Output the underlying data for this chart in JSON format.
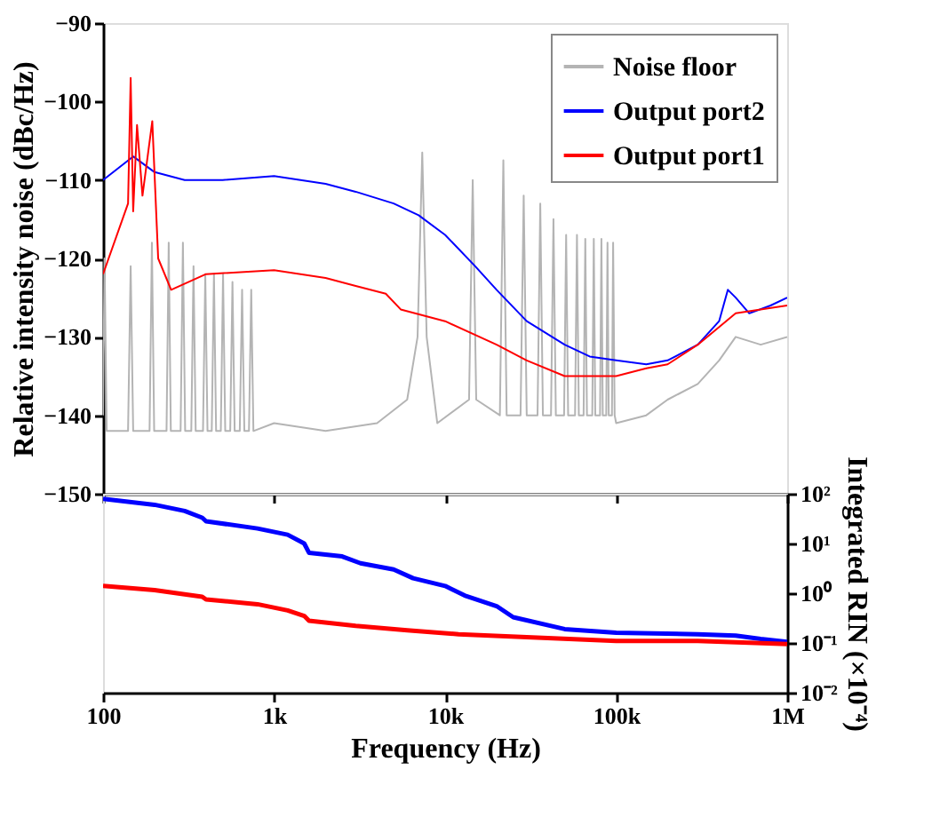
{
  "chart_data": [
    {
      "type": "line",
      "ylabel": "Relative intensity noise (dBc/Hz)",
      "xlim": [
        100,
        1000000
      ],
      "xticks": [
        {
          "value": 100,
          "label": null
        },
        {
          "value": 1000,
          "label": null
        },
        {
          "value": 10000,
          "label": null
        },
        {
          "value": 100000,
          "label": null
        },
        {
          "value": 1000000,
          "label": null
        }
      ],
      "ylim": [
        -150,
        -90
      ],
      "yticks": [
        -150,
        -140,
        -130,
        -120,
        -110,
        -100,
        -90
      ],
      "log": "x",
      "tick_labels": "y",
      "legend": "top right",
      "grid": false,
      "series": [
        {
          "name": "Noise floor",
          "color": "#b4b4b4",
          "x": [
            100,
            102,
            105,
            140,
            145,
            150,
            187,
            193,
            199,
            235,
            242,
            249,
            284,
            293,
            302,
            328,
            338,
            348,
            384,
            396,
            408,
            432,
            445,
            458,
            488,
            503,
            518,
            554,
            571,
            588,
            630,
            650,
            670,
            713,
            735,
            757,
            1000,
            2000,
            4000,
            6000,
            6900,
            7350,
            7800,
            9000,
            13800,
            14500,
            15200,
            20900,
            21900,
            22900,
            27600,
            28800,
            30000,
            34700,
            36000,
            37300,
            41600,
            43000,
            44400,
            49600,
            51000,
            52400,
            57500,
            59000,
            60500,
            64500,
            66000,
            67500,
            72500,
            74000,
            75500,
            80500,
            82000,
            83500,
            87500,
            89000,
            90500,
            94500,
            96000,
            98000,
            100000,
            150000,
            200000,
            300000,
            400000,
            500000,
            700000,
            1000000
          ],
          "values": [
            -140,
            -120,
            -142,
            -142,
            -121,
            -142,
            -142,
            -118,
            -142,
            -142,
            -118,
            -142,
            -142,
            -118,
            -142,
            -142,
            -121,
            -142,
            -142,
            -122,
            -142,
            -142,
            -122,
            -142,
            -142,
            -122,
            -142,
            -142,
            -123,
            -142,
            -142,
            -124,
            -142,
            -142,
            -124,
            -142,
            -141,
            -142,
            -141,
            -138,
            -130,
            -106.5,
            -130,
            -141,
            -138,
            -110,
            -138,
            -140,
            -107.5,
            -140,
            -140,
            -112,
            -140,
            -140,
            -113,
            -140,
            -140,
            -115,
            -140,
            -140,
            -117,
            -140,
            -140,
            -117,
            -140,
            -140,
            -117.5,
            -140,
            -140,
            -117.5,
            -140,
            -140,
            -117.5,
            -140,
            -140,
            -118,
            -140,
            -140,
            -118,
            -140,
            -141,
            -140,
            -138,
            -136,
            -133,
            -130,
            -131,
            -130
          ]
        },
        {
          "name": "Output port2",
          "color": "#0000ff",
          "x": [
            100,
            150,
            200,
            300,
            500,
            1000,
            2000,
            3000,
            5000,
            7000,
            10000,
            15000,
            20000,
            30000,
            50000,
            70000,
            100000,
            150000,
            200000,
            300000,
            400000,
            450000,
            500000,
            600000,
            800000,
            1000000
          ],
          "values": [
            -110,
            -107,
            -109,
            -110,
            -110,
            -109.5,
            -110.5,
            -111.5,
            -113,
            -114.5,
            -117,
            -121,
            -124,
            -128,
            -131,
            -132.5,
            -133,
            -133.5,
            -133,
            -131,
            -128,
            -124,
            -125,
            -127,
            -126,
            -125
          ]
        },
        {
          "name": "Output port1",
          "color": "#ff0000",
          "x": [
            100,
            140,
            145,
            150,
            158,
            170,
            194,
            210,
            250,
            400,
            1000,
            2000,
            3000,
            4500,
            5500,
            10000,
            20000,
            30000,
            50000,
            70000,
            100000,
            150000,
            200000,
            300000,
            500000,
            1000000
          ],
          "values": [
            -122,
            -113,
            -97,
            -114,
            -103,
            -112,
            -102.5,
            -120,
            -124,
            -122,
            -121.5,
            -122.5,
            -123.5,
            -124.5,
            -126.5,
            -128,
            -131,
            -133,
            -135,
            -135,
            -135,
            -134,
            -133.5,
            -131,
            -127,
            -126
          ]
        }
      ]
    },
    {
      "type": "line",
      "xlabel": "Frequency (Hz)",
      "ylabel": "Integrated RIN (×10⁻⁴)",
      "xlim": [
        100,
        1000000
      ],
      "xticks": [
        {
          "value": 100,
          "label": "100"
        },
        {
          "value": 1000,
          "label": "1k"
        },
        {
          "value": 10000,
          "label": "10k"
        },
        {
          "value": 100000,
          "label": "100k"
        },
        {
          "value": 1000000,
          "label": "1M"
        }
      ],
      "ylim": [
        0.01,
        100
      ],
      "yticks": [
        {
          "value": 0.01,
          "label": "10⁻²"
        },
        {
          "value": 0.1,
          "label": "10⁻¹"
        },
        {
          "value": 1,
          "label": "10⁰"
        },
        {
          "value": 10,
          "label": "10¹"
        },
        {
          "value": 100,
          "label": "10²"
        }
      ],
      "log": "xy",
      "legend": false,
      "grid": false,
      "series": [
        {
          "color": "#0000ff",
          "x": [
            100,
            200,
            300,
            380,
            400,
            800,
            1200,
            1500,
            1600,
            2500,
            3200,
            5000,
            6500,
            10000,
            13000,
            20000,
            25000,
            50000,
            100000,
            300000,
            500000,
            700000,
            1000000
          ],
          "values": [
            79,
            60,
            45,
            33,
            28,
            20,
            15,
            10,
            6.5,
            5.5,
            4,
            3,
            2,
            1.4,
            0.9,
            0.55,
            0.33,
            0.19,
            0.16,
            0.15,
            0.14,
            0.12,
            0.105
          ]
        },
        {
          "color": "#ff0000",
          "x": [
            100,
            200,
            300,
            380,
            400,
            800,
            1200,
            1500,
            1600,
            3000,
            6000,
            12000,
            30000,
            100000,
            300000,
            1000000
          ],
          "values": [
            1.4,
            1.15,
            0.95,
            0.85,
            0.75,
            0.6,
            0.45,
            0.35,
            0.28,
            0.22,
            0.18,
            0.15,
            0.13,
            0.11,
            0.11,
            0.095
          ]
        }
      ]
    }
  ]
}
